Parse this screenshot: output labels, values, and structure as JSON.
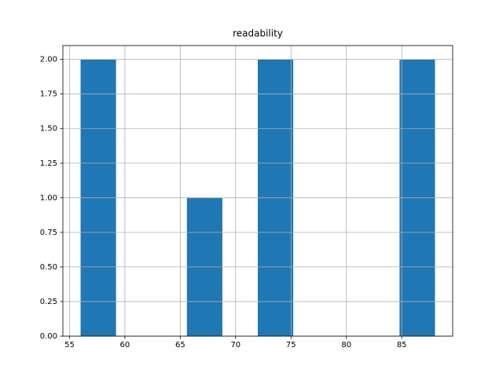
{
  "chart_data": {
    "type": "histogram",
    "title": "readability",
    "bins": [
      56,
      59.2,
      62.4,
      65.6,
      68.8,
      72,
      75.2,
      78.4,
      81.6,
      84.8,
      88
    ],
    "counts": [
      2,
      0,
      0,
      1,
      0,
      2,
      0,
      0,
      0,
      2
    ],
    "color": "#1f77b4",
    "xlim": [
      54.4,
      89.6
    ],
    "xticks": [
      55,
      60,
      65,
      70,
      75,
      80,
      85
    ],
    "ylim": [
      0,
      2.1
    ],
    "yticks": [
      {
        "value": 0,
        "label": "0.00"
      },
      {
        "value": 0.25,
        "label": "0.25"
      },
      {
        "value": 0.5,
        "label": "0.50"
      },
      {
        "value": 0.75,
        "label": "0.75"
      },
      {
        "value": 1,
        "label": "1.00"
      },
      {
        "value": 1.25,
        "label": "1.25"
      },
      {
        "value": 1.5,
        "label": "1.50"
      },
      {
        "value": 1.75,
        "label": "1.75"
      },
      {
        "value": 2,
        "label": "2.00"
      }
    ],
    "grid": true
  }
}
